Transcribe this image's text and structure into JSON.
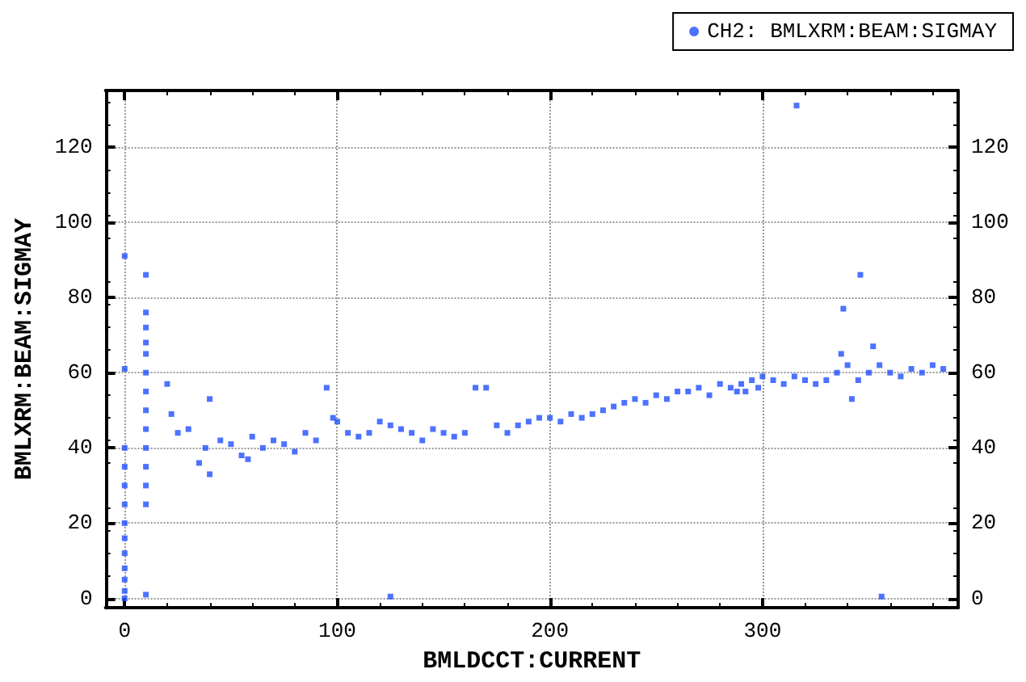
{
  "chart_data": {
    "type": "scatter",
    "xlabel": "BMLDCCT:CURRENT",
    "ylabel": "BMLXRM:BEAM:SIGMAY",
    "xlim": [
      -9,
      392
    ],
    "xticks": [
      0,
      100,
      200,
      300
    ],
    "ylim": [
      -2.5,
      135
    ],
    "yticks": [
      0,
      20,
      40,
      60,
      80,
      100,
      120
    ],
    "y2lim": [
      -2.5,
      135
    ],
    "y2ticks": [
      0,
      20,
      40,
      60,
      80,
      100,
      120
    ],
    "grid": true,
    "legend": "top right",
    "marker": "square",
    "series": [
      {
        "name": "CH2: BMLXRM:BEAM:SIGMAY",
        "color": "#1f4fff",
        "x": [
          0,
          0,
          0,
          0,
          0,
          0,
          0,
          0,
          0,
          0,
          0,
          0,
          0,
          10,
          10,
          10,
          10,
          10,
          10,
          10,
          10,
          10,
          10,
          10,
          10,
          10,
          10,
          20,
          22,
          25,
          30,
          35,
          38,
          40,
          40,
          45,
          50,
          55,
          58,
          60,
          65,
          70,
          75,
          80,
          85,
          90,
          95,
          98,
          100,
          105,
          110,
          115,
          120,
          125,
          125,
          130,
          135,
          140,
          145,
          150,
          155,
          160,
          165,
          170,
          175,
          180,
          185,
          190,
          195,
          200,
          205,
          210,
          215,
          220,
          225,
          230,
          235,
          240,
          245,
          250,
          255,
          260,
          265,
          270,
          275,
          280,
          285,
          288,
          290,
          292,
          295,
          298,
          300,
          305,
          310,
          315,
          316,
          320,
          325,
          330,
          335,
          337,
          338,
          340,
          342,
          345,
          346,
          350,
          352,
          355,
          356,
          360,
          365,
          370,
          375,
          380,
          385
        ],
        "values": [
          0,
          2,
          5,
          8,
          12,
          16,
          20,
          25,
          30,
          35,
          40,
          61,
          91,
          86,
          76,
          72,
          68,
          65,
          60,
          55,
          50,
          45,
          40,
          35,
          30,
          25,
          1,
          57,
          49,
          44,
          45,
          36,
          40,
          33,
          53,
          42,
          41,
          38,
          37,
          43,
          40,
          42,
          41,
          39,
          44,
          42,
          56,
          48,
          47,
          44,
          43,
          44,
          47,
          46,
          0.5,
          45,
          44,
          42,
          45,
          44,
          43,
          44,
          56,
          56,
          46,
          44,
          46,
          47,
          48,
          48,
          47,
          49,
          48,
          49,
          50,
          51,
          52,
          53,
          52,
          54,
          53,
          55,
          55,
          56,
          54,
          57,
          56,
          55,
          57,
          55,
          58,
          56,
          59,
          58,
          57,
          59,
          131,
          58,
          57,
          58,
          60,
          65,
          77,
          62,
          53,
          58,
          86,
          60,
          67,
          62,
          0.5,
          60,
          59,
          61,
          60,
          62,
          61
        ]
      }
    ]
  }
}
